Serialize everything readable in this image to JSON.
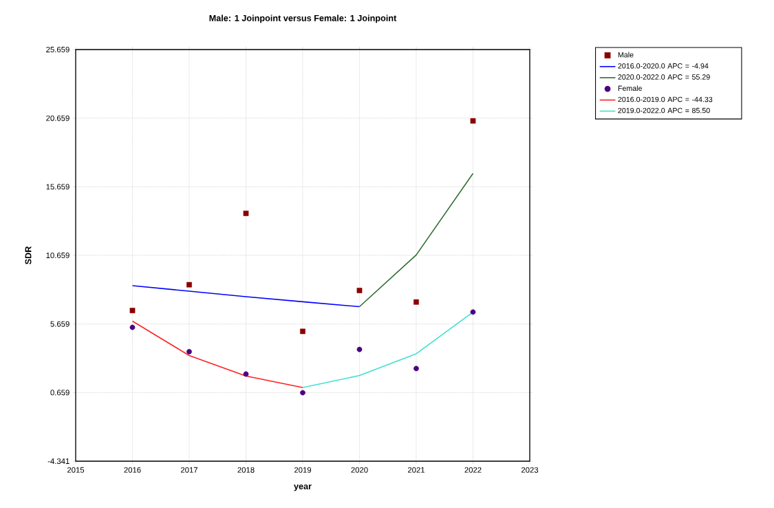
{
  "chart_data": {
    "type": "scatter",
    "title": "Male: 1 Joinpoint  versus  Female: 1 Joinpoint",
    "xlabel": "year",
    "ylabel": "SDR",
    "xlim": [
      2015,
      2023
    ],
    "xticks": [
      2015,
      2016,
      2017,
      2018,
      2019,
      2020,
      2021,
      2022,
      2023
    ],
    "ylim": [
      -4.341,
      25.659
    ],
    "yticks": [
      -4.341,
      0.659,
      5.659,
      10.659,
      15.659,
      20.659,
      25.659
    ],
    "grid": true,
    "legend": "top right",
    "series": [
      {
        "name": "Male",
        "marker": "square",
        "color": "#8b0000",
        "x": [
          2016,
          2017,
          2018,
          2019,
          2020,
          2021,
          2022
        ],
        "values": [
          6.64,
          8.52,
          13.72,
          5.12,
          8.1,
          7.26,
          20.46
        ]
      },
      {
        "name": "2016.0-2020.0 APC  = -4.94",
        "type": "line",
        "color": "#0000ff",
        "x": [
          2016,
          2017,
          2018,
          2019,
          2020
        ],
        "values": [
          8.45,
          8.05,
          7.65,
          7.28,
          6.92
        ]
      },
      {
        "name": "2020.0-2022.0 APC  = 55.29",
        "type": "line",
        "color": "#2e6b2e",
        "x": [
          2020,
          2021,
          2022
        ],
        "values": [
          6.92,
          10.69,
          16.63
        ]
      },
      {
        "name": "Female",
        "marker": "circle",
        "color": "#4b0082",
        "x": [
          2016,
          2017,
          2018,
          2019,
          2020,
          2021,
          2022
        ],
        "values": [
          5.41,
          3.64,
          2.01,
          0.65,
          3.8,
          2.41,
          6.53
        ]
      },
      {
        "name": "2016.0-2019.0 APC  = -44.33",
        "type": "line",
        "color": "#ff2020",
        "x": [
          2016,
          2017,
          2018,
          2019
        ],
        "values": [
          5.87,
          3.36,
          1.87,
          1.03
        ]
      },
      {
        "name": "2019.0-2022.0 APC  =  85.50",
        "type": "line",
        "color": "#40e0d0",
        "x": [
          2019,
          2020,
          2021,
          2022
        ],
        "values": [
          1.03,
          1.9,
          3.49,
          6.53
        ]
      }
    ]
  }
}
